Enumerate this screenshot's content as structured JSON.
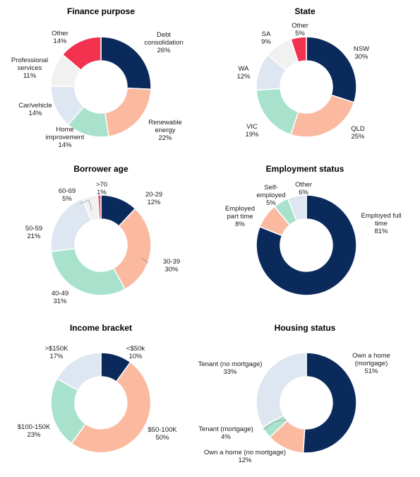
{
  "colors": {
    "navy": "#0b2a5c",
    "salmon": "#fbb9a0",
    "mint": "#a9e2cc",
    "light_blue": "#dde6f1",
    "light_grey": "#f1f1f1",
    "red": "#f2324f",
    "separator": "#ffffff"
  },
  "chart_data": [
    {
      "type": "pie",
      "title": "Finance purpose",
      "slices": [
        {
          "label": [
            "Debt",
            "consolidation",
            "26%"
          ],
          "value": 26,
          "color": "navy"
        },
        {
          "label": [
            "Renewable",
            "energy",
            "22%"
          ],
          "value": 22,
          "color": "salmon"
        },
        {
          "label": [
            "Home",
            "improvement",
            "14%"
          ],
          "value": 14,
          "color": "mint"
        },
        {
          "label": [
            "Car/vehicle",
            "14%"
          ],
          "value": 14,
          "color": "light_blue"
        },
        {
          "label": [
            "Professional",
            "services",
            "11%"
          ],
          "value": 11,
          "color": "light_grey"
        },
        {
          "label": [
            "Other",
            "14%"
          ],
          "value": 14,
          "color": "red"
        }
      ]
    },
    {
      "type": "pie",
      "title": "State",
      "slices": [
        {
          "label": [
            "NSW",
            "30%"
          ],
          "value": 30,
          "color": "navy"
        },
        {
          "label": [
            "QLD",
            "25%"
          ],
          "value": 25,
          "color": "salmon"
        },
        {
          "label": [
            "VIC",
            "19%"
          ],
          "value": 19,
          "color": "mint"
        },
        {
          "label": [
            "WA",
            "12%"
          ],
          "value": 12,
          "color": "light_blue"
        },
        {
          "label": [
            "SA",
            "9%"
          ],
          "value": 9,
          "color": "light_grey"
        },
        {
          "label": [
            "Other",
            "5%"
          ],
          "value": 5,
          "color": "red"
        }
      ]
    },
    {
      "type": "pie",
      "title": "Borrower age",
      "slices": [
        {
          "label": [
            "20-29",
            "12%"
          ],
          "value": 12,
          "color": "navy"
        },
        {
          "label": [
            "30-39",
            "30%"
          ],
          "value": 30,
          "color": "salmon"
        },
        {
          "label": [
            "40-49",
            "31%"
          ],
          "value": 31,
          "color": "mint"
        },
        {
          "label": [
            "50-59",
            "21%"
          ],
          "value": 21,
          "color": "light_blue"
        },
        {
          "label": [
            "60-69",
            "5%"
          ],
          "value": 5,
          "color": "light_grey"
        },
        {
          "label": [
            ">70",
            "1%"
          ],
          "value": 1,
          "color": "red"
        }
      ]
    },
    {
      "type": "pie",
      "title": "Employment status",
      "slices": [
        {
          "label": [
            "Employed full",
            "time",
            "81%"
          ],
          "value": 81,
          "color": "navy"
        },
        {
          "label": [
            "Employed",
            "part time",
            "8%"
          ],
          "value": 8,
          "color": "salmon"
        },
        {
          "label": [
            "Self-",
            "employed",
            "5%"
          ],
          "value": 5,
          "color": "mint"
        },
        {
          "label": [
            "Other",
            "6%"
          ],
          "value": 6,
          "color": "light_blue"
        }
      ]
    },
    {
      "type": "pie",
      "title": "Income bracket",
      "slices": [
        {
          "label": [
            "<$50k",
            "10%"
          ],
          "value": 10,
          "color": "navy"
        },
        {
          "label": [
            "$50-100K",
            "50%"
          ],
          "value": 50,
          "color": "salmon"
        },
        {
          "label": [
            "$100-150K",
            "23%"
          ],
          "value": 23,
          "color": "mint"
        },
        {
          "label": [
            ">$150K",
            "17%"
          ],
          "value": 17,
          "color": "light_blue"
        }
      ]
    },
    {
      "type": "pie",
      "title": "Housing status",
      "slices": [
        {
          "label": [
            "Own a home",
            "(mortgage)",
            "51%"
          ],
          "value": 51,
          "color": "navy"
        },
        {
          "label": [
            "Own a home (no mortgage)",
            "12%"
          ],
          "value": 12,
          "color": "salmon"
        },
        {
          "label": [
            "Tenant (mortgage)",
            "4%"
          ],
          "value": 4,
          "color": "mint"
        },
        {
          "label": [
            "Tenant (no mortgage)",
            "33%"
          ],
          "value": 33,
          "color": "light_blue"
        }
      ]
    }
  ]
}
